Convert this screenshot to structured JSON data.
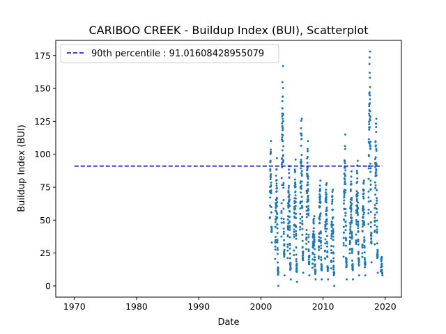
{
  "chart_data": {
    "type": "scatter",
    "title": "CARIBOO CREEK - Buildup Index (BUI), Scatterplot",
    "xlabel": "Date",
    "ylabel": "Buildup Index (BUI)",
    "xlim": [
      1967.0,
      2022.6
    ],
    "ylim": [
      -8.5,
      186.5
    ],
    "xticks": [
      1970,
      1980,
      1990,
      2000,
      2010,
      2020
    ],
    "yticks": [
      0,
      25,
      50,
      75,
      100,
      125,
      150,
      175
    ],
    "point_color": "#1f77b4",
    "legend": {
      "position": "upper-left",
      "entries": [
        {
          "label": "90th percentile : 91.01608428955079",
          "style": "dashed",
          "color": "#0000cc"
        }
      ]
    },
    "reference_lines": [
      {
        "name": "90th percentile : 91.01608428955079",
        "y": 91.01608428955079,
        "x_start": 1970,
        "x_end": 2019.5,
        "color": "#0000cc",
        "style": "dashed"
      }
    ],
    "seasons": [
      {
        "year": 2001,
        "start": 2001.45,
        "end": 2001.75,
        "min": 33,
        "max": 110,
        "n": 40
      },
      {
        "year": 2002,
        "start": 2002.3,
        "end": 2002.8,
        "min": 0,
        "max": 97,
        "n": 70
      },
      {
        "year": 2003,
        "start": 2003.3,
        "end": 2003.8,
        "min": 8,
        "max": 167,
        "n": 70
      },
      {
        "year": 2004,
        "start": 2004.3,
        "end": 2004.8,
        "min": 5,
        "max": 91,
        "n": 70
      },
      {
        "year": 2005,
        "start": 2005.3,
        "end": 2005.8,
        "min": 3,
        "max": 96,
        "n": 70
      },
      {
        "year": 2006,
        "start": 2006.3,
        "end": 2006.8,
        "min": 10,
        "max": 127,
        "n": 70
      },
      {
        "year": 2007,
        "start": 2007.3,
        "end": 2007.8,
        "min": 8,
        "max": 110,
        "n": 70
      },
      {
        "year": 2008,
        "start": 2008.3,
        "end": 2008.8,
        "min": 5,
        "max": 53,
        "n": 60
      },
      {
        "year": 2009,
        "start": 2009.3,
        "end": 2009.8,
        "min": 5,
        "max": 80,
        "n": 60
      },
      {
        "year": 2010,
        "start": 2010.3,
        "end": 2010.8,
        "min": 5,
        "max": 78,
        "n": 60
      },
      {
        "year": 2011,
        "start": 2011.3,
        "end": 2011.8,
        "min": 0,
        "max": 73,
        "n": 60
      },
      {
        "year": 2013,
        "start": 2013.3,
        "end": 2013.8,
        "min": 5,
        "max": 115,
        "n": 70
      },
      {
        "year": 2014,
        "start": 2014.3,
        "end": 2014.8,
        "min": 5,
        "max": 87,
        "n": 70
      },
      {
        "year": 2015,
        "start": 2015.3,
        "end": 2015.8,
        "min": 8,
        "max": 95,
        "n": 70
      },
      {
        "year": 2016,
        "start": 2016.3,
        "end": 2016.8,
        "min": 8,
        "max": 80,
        "n": 60
      },
      {
        "year": 2017,
        "start": 2017.3,
        "end": 2017.8,
        "min": 18,
        "max": 178,
        "n": 75
      },
      {
        "year": 2018,
        "start": 2018.3,
        "end": 2018.8,
        "min": 10,
        "max": 127,
        "n": 70
      },
      {
        "year": 2019,
        "start": 2019.3,
        "end": 2019.55,
        "min": 8,
        "max": 22,
        "n": 20
      }
    ]
  }
}
